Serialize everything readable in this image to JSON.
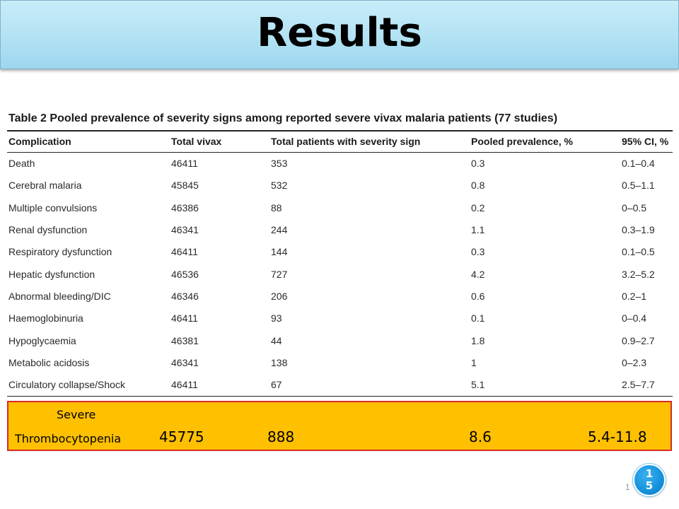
{
  "slide": {
    "title": "Results",
    "page_number_faint": "1",
    "badge": {
      "line1": "1",
      "line2": "5"
    }
  },
  "table": {
    "caption": "Table 2 Pooled prevalence of severity signs among reported severe vivax malaria patients (77 studies)",
    "headers": [
      "Complication",
      "Total vivax",
      "Total patients with severity sign",
      "Pooled prevalence, %",
      "95% CI, %"
    ],
    "rows": [
      [
        "Death",
        "46411",
        "353",
        "0.3",
        "0.1–0.4"
      ],
      [
        "Cerebral malaria",
        "45845",
        "532",
        "0.8",
        "0.5–1.1"
      ],
      [
        "Multiple convulsions",
        "46386",
        "88",
        "0.2",
        "0–0.5"
      ],
      [
        "Renal dysfunction",
        "46341",
        "244",
        "1.1",
        "0.3–1.9"
      ],
      [
        "Respiratory dysfunction",
        "46411",
        "144",
        "0.3",
        "0.1–0.5"
      ],
      [
        "Hepatic dysfunction",
        "46536",
        "727",
        "4.2",
        "3.2–5.2"
      ],
      [
        "Abnormal bleeding/DIC",
        "46346",
        "206",
        "0.6",
        "0.2–1"
      ],
      [
        "Haemoglobinuria",
        "46411",
        "93",
        "0.1",
        "0–0.4"
      ],
      [
        "Hypoglycaemia",
        "46381",
        "44",
        "1.8",
        "0.9–2.7"
      ],
      [
        "Metabolic acidosis",
        "46341",
        "138",
        "1",
        "0–2.3"
      ],
      [
        "Circulatory collapse/Shock",
        "46411",
        "67",
        "5.1",
        "2.5–7.7"
      ]
    ]
  },
  "highlight_row": {
    "label_line1": "Severe",
    "label_line2": "Thrombocytopenia",
    "total_vivax": "45775",
    "total_patients": "888",
    "pooled_prevalence": "8.6",
    "ci": "5.4-11.8"
  },
  "colors": {
    "banner": "#b2e2f3",
    "highlight_fill": "#ffc000",
    "highlight_border": "#d62b2b",
    "badge": "#1591db"
  }
}
